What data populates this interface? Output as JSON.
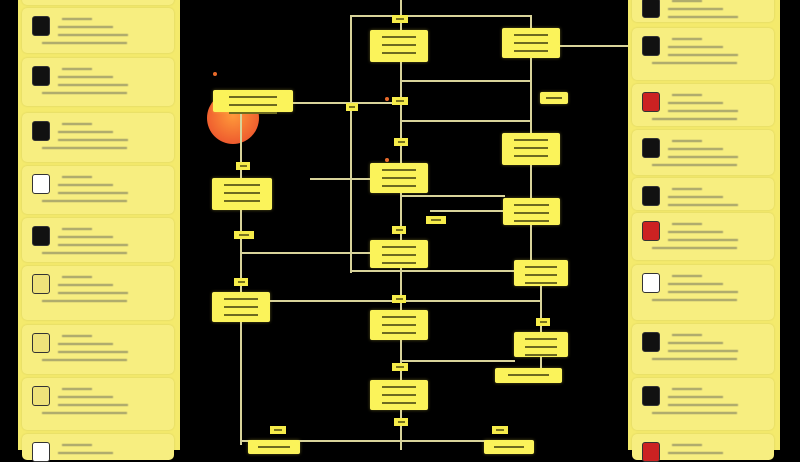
{
  "theme": {
    "panel_color": "#f4ea6c",
    "node_color": "#fbf35a",
    "background": "#000000",
    "connector_color": "#d8d39a",
    "accent_circle": "#e8442a"
  },
  "left_panel": {
    "cards": [
      {
        "icon": "partial-card"
      },
      {
        "icon": "logo-badge-icon"
      },
      {
        "icon": "diamond-circle-icon"
      },
      {
        "icon": "dark-photo-icon"
      },
      {
        "icon": "id-card-icon"
      },
      {
        "icon": "car-icon"
      },
      {
        "icon": "document-icon"
      },
      {
        "icon": "document-icon"
      },
      {
        "icon": "document-icon"
      },
      {
        "icon": "playing-card-icon"
      },
      {
        "icon": "document-icon"
      }
    ]
  },
  "right_panel": {
    "cards": [
      {
        "icon": "app-icon"
      },
      {
        "icon": "phone-icon"
      },
      {
        "icon": "red-logo-icon"
      },
      {
        "icon": "ring-icon"
      },
      {
        "icon": "circle-logo-icon"
      },
      {
        "icon": "red-badge-icon"
      },
      {
        "icon": "playing-card-icon"
      },
      {
        "icon": "device-icon"
      },
      {
        "icon": "letter-a-icon"
      },
      {
        "icon": "red-logo-icon"
      }
    ]
  }
}
